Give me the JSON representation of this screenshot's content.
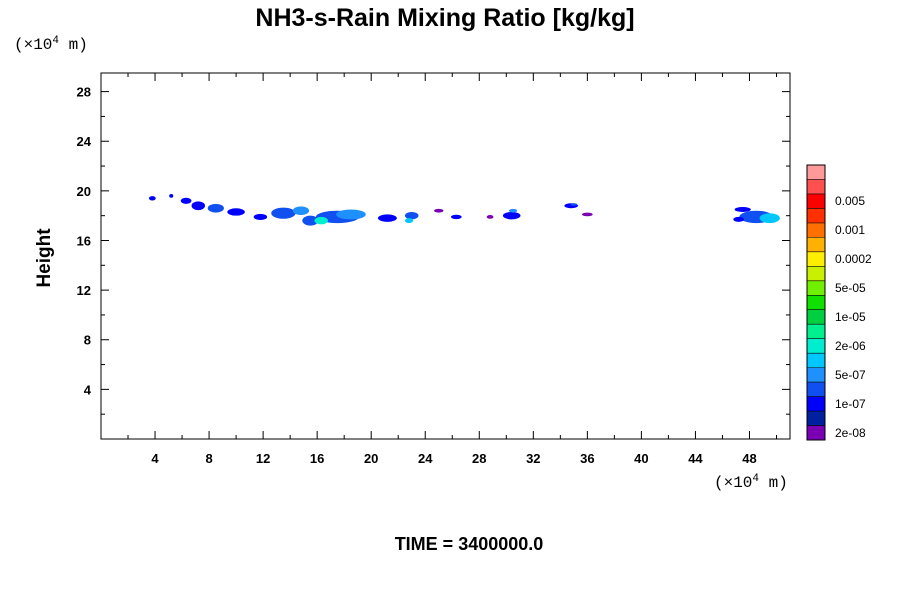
{
  "chart_data": {
    "type": "heatmap",
    "title": "NH3-s-Rain Mixing Ratio [kg/kg]",
    "x_unit_prefix": "(×10",
    "x_unit_exp": "4",
    "x_unit_suffix": " m)",
    "y_unit_prefix": "(×10",
    "y_unit_exp": "4",
    "y_unit_suffix": " m)",
    "ylabel": "Height",
    "xlim": [
      0,
      51
    ],
    "ylim": [
      0,
      29.5
    ],
    "x_ticks": [
      "4",
      "8",
      "12",
      "16",
      "20",
      "24",
      "28",
      "32",
      "36",
      "40",
      "44",
      "48"
    ],
    "y_ticks": [
      "4",
      "8",
      "12",
      "16",
      "20",
      "24",
      "28"
    ],
    "colorbar": {
      "colors": [
        "#7a00b4",
        "#0020a0",
        "#0000ff",
        "#1050f0",
        "#1e90ff",
        "#00c8ff",
        "#00eed0",
        "#00f090",
        "#00d040",
        "#10e000",
        "#70f000",
        "#c8f000",
        "#ffee00",
        "#ffb000",
        "#ff7000",
        "#ff3000",
        "#ff0000",
        "#ff5050",
        "#ff9a9a"
      ],
      "labels": [
        "2e-08",
        "1e-07",
        "5e-07",
        "2e-06",
        "1e-05",
        "5e-05",
        "0.0002",
        "0.001",
        "0.005"
      ]
    },
    "features": [
      {
        "x": 3.8,
        "y": 19.4,
        "w": 0.5,
        "h": 0.35,
        "level": 2
      },
      {
        "x": 5.2,
        "y": 19.6,
        "w": 0.3,
        "h": 0.3,
        "level": 2
      },
      {
        "x": 6.3,
        "y": 19.2,
        "w": 0.8,
        "h": 0.5,
        "level": 2
      },
      {
        "x": 7.2,
        "y": 18.8,
        "w": 1.0,
        "h": 0.7,
        "level": 2
      },
      {
        "x": 8.5,
        "y": 18.6,
        "w": 1.2,
        "h": 0.7,
        "level": 3
      },
      {
        "x": 10.0,
        "y": 18.3,
        "w": 1.3,
        "h": 0.6,
        "level": 2
      },
      {
        "x": 11.8,
        "y": 17.9,
        "w": 1.0,
        "h": 0.5,
        "level": 2
      },
      {
        "x": 13.5,
        "y": 18.2,
        "w": 1.8,
        "h": 0.9,
        "level": 3
      },
      {
        "x": 14.8,
        "y": 18.4,
        "w": 1.2,
        "h": 0.7,
        "level": 4
      },
      {
        "x": 15.5,
        "y": 17.6,
        "w": 1.2,
        "h": 0.8,
        "level": 3
      },
      {
        "x": 17.5,
        "y": 17.9,
        "w": 3.2,
        "h": 1.0,
        "level": 3
      },
      {
        "x": 18.5,
        "y": 18.1,
        "w": 2.2,
        "h": 0.8,
        "level": 4
      },
      {
        "x": 16.3,
        "y": 17.6,
        "w": 1.0,
        "h": 0.6,
        "level": 6
      },
      {
        "x": 21.2,
        "y": 17.8,
        "w": 1.4,
        "h": 0.6,
        "level": 2
      },
      {
        "x": 23.0,
        "y": 18.0,
        "w": 1.0,
        "h": 0.6,
        "level": 3
      },
      {
        "x": 22.8,
        "y": 17.6,
        "w": 0.6,
        "h": 0.4,
        "level": 5
      },
      {
        "x": 25.0,
        "y": 18.4,
        "w": 0.7,
        "h": 0.3,
        "level": 0
      },
      {
        "x": 26.3,
        "y": 17.9,
        "w": 0.8,
        "h": 0.35,
        "level": 2
      },
      {
        "x": 28.8,
        "y": 17.9,
        "w": 0.5,
        "h": 0.3,
        "level": 0
      },
      {
        "x": 30.4,
        "y": 18.0,
        "w": 1.3,
        "h": 0.6,
        "level": 2
      },
      {
        "x": 30.5,
        "y": 18.4,
        "w": 0.6,
        "h": 0.3,
        "level": 4
      },
      {
        "x": 34.8,
        "y": 18.8,
        "w": 1.0,
        "h": 0.4,
        "level": 2
      },
      {
        "x": 35.0,
        "y": 18.9,
        "w": 0.5,
        "h": 0.2,
        "level": 3
      },
      {
        "x": 36.0,
        "y": 18.1,
        "w": 0.8,
        "h": 0.3,
        "level": 0
      },
      {
        "x": 47.5,
        "y": 18.5,
        "w": 1.2,
        "h": 0.4,
        "level": 2
      },
      {
        "x": 48.5,
        "y": 17.9,
        "w": 2.5,
        "h": 1.0,
        "level": 3
      },
      {
        "x": 49.5,
        "y": 17.8,
        "w": 1.5,
        "h": 0.8,
        "level": 5
      },
      {
        "x": 47.2,
        "y": 17.7,
        "w": 0.8,
        "h": 0.4,
        "level": 2
      }
    ],
    "time_label": "TIME = 3400000.0"
  }
}
